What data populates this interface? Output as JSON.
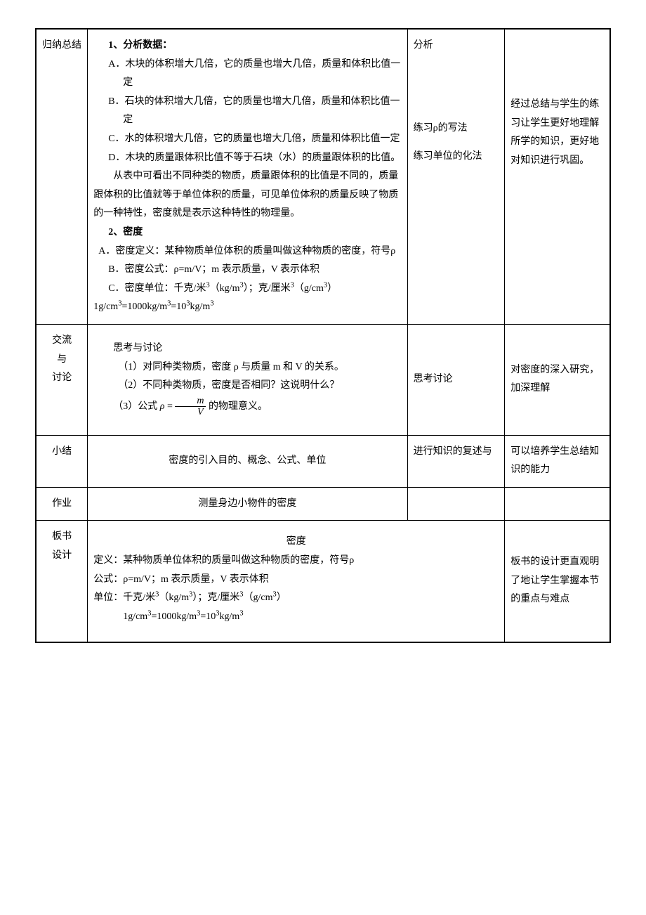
{
  "rows": {
    "r1": {
      "label": "归纳总结",
      "h1": "1、分析数据：",
      "a": "A．木块的体积增大几倍，它的质量也增大几倍，质量和体积比值一定",
      "b": "B．石块的体积增大几倍，它的质量也增大几倍，质量和体积比值一定",
      "c": "C．水的体积增大几倍，它的质量也增大几倍，质量和体积比值一定",
      "d": "D．木块的质量跟体积比值不等于石块（水）的质量跟体积的比值。",
      "p1": "从表中可看出不同种类的物质，质量跟体积的比值是不同的，质量跟体积的比值就等于单位体积的质量，可见单位体积的质量反映了物质的一种特性，密度就是表示这种特性的物理量。",
      "h2": "2、密度",
      "def": "A．密度定义：某种物质单位体积的质量叫做这种物质的密度，符号ρ",
      "formula": "B．密度公式：ρ=m/V；m 表示质量，V 表示体积",
      "unit1": "C．密度单位：千克/米³（kg/m³）；克/厘米³（g/cm³）",
      "unit2": "1g/cm³=1000kg/m³=10³kg/m³",
      "col3a": "分析",
      "col3b": "练习ρ的写法",
      "col3c": "练习单位的化法",
      "col4": "经过总结与学生的练习让学生更好地理解所学的知识，更好地对知识进行巩固。"
    },
    "r2": {
      "label": "交流与讨论",
      "h": "思考与讨论",
      "q1": "（1）对同种类物质，密度 ρ 与质量 m 和 V 的关系。",
      "q2": "（2）不同种类物质，密度是否相同？这说明什么？",
      "q3a": "（3）公式",
      "q3b": "的物理意义。",
      "rho": "ρ =",
      "m": "m",
      "v": "V",
      "col3": "思考讨论",
      "col4": "对密度的深入研究，加深理解"
    },
    "r3": {
      "label": "小结",
      "content": "密度的引入目的、概念、公式、单位",
      "col3": "进行知识的复述与",
      "col4": "可以培养学生总结知识的能力"
    },
    "r4": {
      "label": "作业",
      "content": "测量身边小物件的密度"
    },
    "r5": {
      "label": "板书设计",
      "title": "密度",
      "l1": "定义：某种物质单位体积的质量叫做这种物质的密度，符号ρ",
      "l2": "公式：ρ=m/V；m 表示质量，V 表示体积",
      "l3": "单位：千克/米³（kg/m³）；克/厘米³（g/cm³）",
      "l4": "1g/cm³=1000kg/m³=10³kg/m³",
      "col4": "板书的设计更直观明了地让学生掌握本节的重点与难点"
    }
  }
}
